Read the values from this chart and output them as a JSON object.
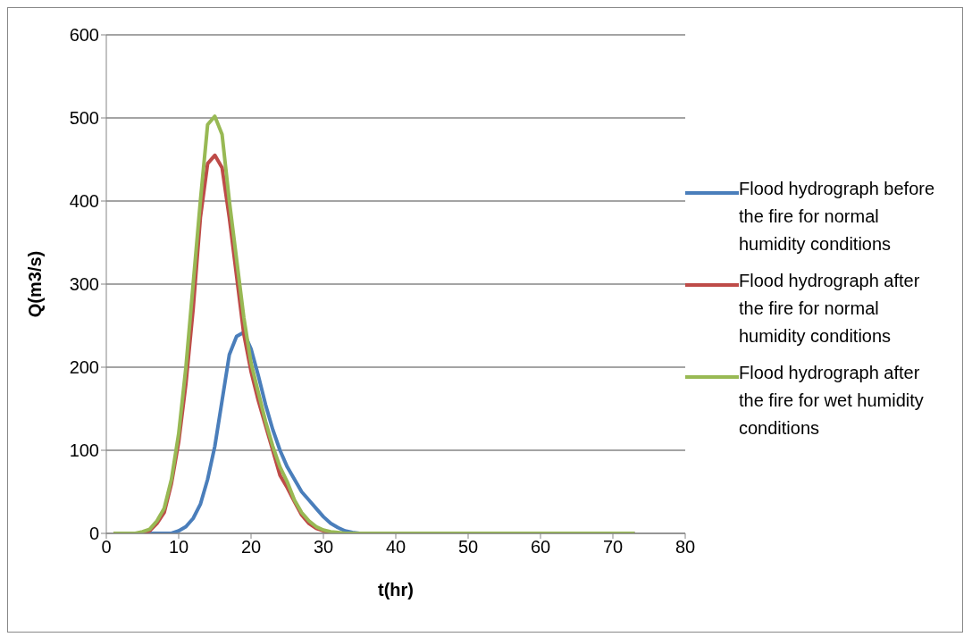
{
  "chart_data": {
    "type": "line",
    "xlabel": "t(hr)",
    "ylabel": "Q(m3/s)",
    "xlim": [
      0,
      80
    ],
    "xticks": [
      0,
      10,
      20,
      30,
      40,
      50,
      60,
      70,
      80
    ],
    "ylim": [
      0,
      600
    ],
    "yticks": [
      0,
      100,
      200,
      300,
      400,
      500,
      600
    ],
    "grid": "y",
    "legend": "right",
    "marker": "none",
    "line_style": "solid",
    "series": [
      {
        "name": "Flood hydrograph before the fire for normal humidity conditions",
        "color": "#4a7ebb",
        "x": [
          1,
          5,
          9,
          10,
          11,
          12,
          13,
          14,
          15,
          16,
          17,
          18,
          19,
          20,
          21,
          22,
          23,
          24,
          25,
          26,
          27,
          28,
          29,
          30,
          31,
          32,
          33,
          34,
          35,
          73
        ],
        "values": [
          0,
          0,
          0,
          3,
          8,
          18,
          35,
          65,
          105,
          160,
          215,
          237,
          242,
          222,
          190,
          155,
          125,
          100,
          80,
          65,
          50,
          40,
          30,
          20,
          12,
          7,
          3,
          1,
          0,
          0
        ]
      },
      {
        "name": "Flood hydrograph after the fire for normal humidity conditions",
        "color": "#be4b48",
        "x": [
          1,
          5,
          6,
          7,
          8,
          9,
          10,
          11,
          12,
          13,
          14,
          15,
          16,
          17,
          18,
          19,
          20,
          21,
          22,
          23,
          24,
          25,
          26,
          27,
          28,
          29,
          30,
          31,
          32,
          73
        ],
        "values": [
          0,
          0,
          3,
          12,
          25,
          60,
          110,
          180,
          270,
          380,
          445,
          455,
          440,
          380,
          310,
          240,
          195,
          160,
          130,
          100,
          70,
          55,
          38,
          22,
          12,
          6,
          3,
          1,
          0,
          0
        ]
      },
      {
        "name": "Flood hydrograph after the fire for wet humidity conditions",
        "color": "#98b954",
        "x": [
          1,
          4,
          5,
          6,
          7,
          8,
          9,
          10,
          11,
          12,
          13,
          14,
          15,
          16,
          17,
          18,
          19,
          20,
          21,
          22,
          23,
          24,
          25,
          26,
          27,
          28,
          29,
          30,
          31,
          32,
          33,
          73
        ],
        "values": [
          0,
          0,
          2,
          5,
          15,
          30,
          65,
          120,
          200,
          300,
          400,
          492,
          502,
          480,
          400,
          330,
          260,
          205,
          170,
          135,
          105,
          80,
          62,
          40,
          25,
          15,
          8,
          4,
          2,
          1,
          0,
          0
        ]
      }
    ]
  }
}
